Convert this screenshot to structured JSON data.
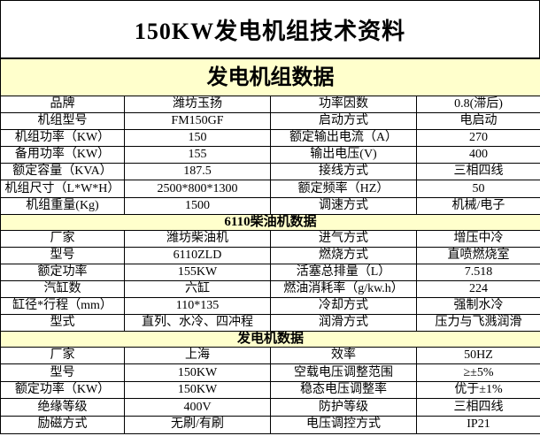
{
  "title": "150KW发电机组技术资料",
  "sections": [
    {
      "heading": "发电机组数据",
      "rows": [
        [
          "品牌",
          "潍坊玉扬",
          "功率因数",
          "0.8(滞后)"
        ],
        [
          "机组型号",
          "FM150GF",
          "启动方式",
          "电启动"
        ],
        [
          "机组功率（KW）",
          "150",
          "额定输出电流（A）",
          "270"
        ],
        [
          "备用功率（KW）",
          "155",
          "输出电压(V)",
          "400"
        ],
        [
          "额定容量（KVA）",
          "187.5",
          "接线方式",
          "三相四线"
        ],
        [
          "机组尺寸（L*W*H）",
          "2500*800*1300",
          "额定频率（HZ）",
          "50"
        ],
        [
          "机组重量(Kg)",
          "1500",
          "调速方式",
          "机械/电子"
        ]
      ]
    },
    {
      "heading": "6110柴油机数据",
      "rows": [
        [
          "厂家",
          "潍坊柴油机",
          "进气方式",
          "增压中冷"
        ],
        [
          "型号",
          "6110ZLD",
          "燃烧方式",
          "直喷燃烧室"
        ],
        [
          "额定功率",
          "155KW",
          "活塞总排量（L）",
          "7.518"
        ],
        [
          "汽缸数",
          "六缸",
          "燃油消耗率（g/kw.h）",
          "224"
        ],
        [
          "缸径*行程（mm）",
          "110*135",
          "冷却方式",
          "强制水冷"
        ],
        [
          "型式",
          "直列、水冷、四冲程",
          "润滑方式",
          "压力与飞溅润滑"
        ]
      ]
    },
    {
      "heading": "发电机数据",
      "rows": [
        [
          "厂家",
          "上海",
          "效率",
          "50HZ"
        ],
        [
          "型号",
          "150KW",
          "空载电压调整范围",
          "≥±5%"
        ],
        [
          "额定功率（KW）",
          "150KW",
          "稳态电压调整率",
          "优于±1%"
        ],
        [
          "绝缘等级",
          "400V",
          "防护等级",
          "三相四线"
        ],
        [
          "励磁方式",
          "无刷/有刷",
          "电压调控方式",
          "IP21"
        ]
      ]
    }
  ]
}
